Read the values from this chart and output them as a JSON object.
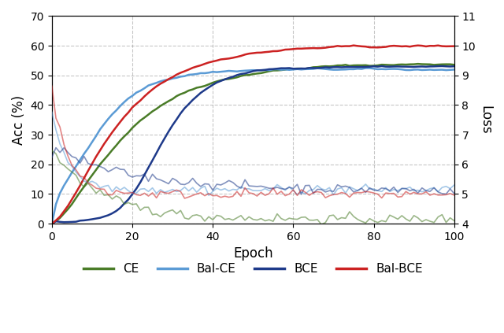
{
  "xlabel": "Epoch",
  "ylabel_left": "Acc (%)",
  "ylabel_right": "Loss",
  "xlim": [
    0,
    100
  ],
  "ylim_left": [
    0,
    70
  ],
  "ylim_right": [
    4,
    11
  ],
  "yticks_left": [
    0,
    10,
    20,
    30,
    40,
    50,
    60,
    70
  ],
  "yticks_right": [
    4,
    5,
    6,
    7,
    8,
    9,
    10,
    11
  ],
  "xticks": [
    0,
    20,
    40,
    60,
    80,
    100
  ],
  "legend_entries": [
    "CE",
    "Bal-CE",
    "BCE",
    "Bal-BCE"
  ],
  "colors": {
    "CE": "#4a7c28",
    "Bal-CE": "#5b9bd5",
    "BCE": "#1e3a8a",
    "Bal-BCE": "#cc2222"
  },
  "acc_end": {
    "CE": 54,
    "Bal-CE": 52,
    "BCE": 53,
    "Bal-BCE": 60
  },
  "loss_end": {
    "CE": 4.15,
    "Bal-CE": 5.15,
    "BCE": 5.1,
    "Bal-BCE": 5.0
  },
  "figsize": [
    6.4,
    4.23
  ],
  "dpi": 100
}
